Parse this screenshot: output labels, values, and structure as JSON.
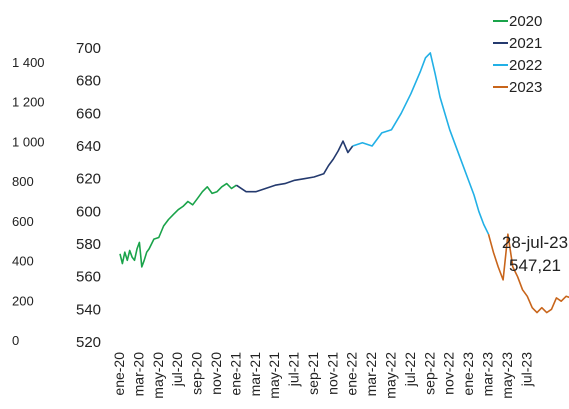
{
  "chart_data": {
    "type": "line",
    "title": "",
    "xlabel": "",
    "ylabel": "",
    "y_left_ticks": [
      "1 400",
      "1 200",
      "1 000",
      "800",
      "600",
      "400",
      "200",
      "0"
    ],
    "y_left_lim": [
      0,
      1400
    ],
    "ylim": [
      520,
      700
    ],
    "y_ticks": [
      520,
      540,
      560,
      580,
      600,
      620,
      640,
      660,
      680,
      700
    ],
    "x_tick_labels": [
      "ene-20",
      "mar-20",
      "may-20",
      "jul-20",
      "sep-20",
      "nov-20",
      "ene-21",
      "mar-21",
      "may-21",
      "jul-21",
      "sep-21",
      "nov-21",
      "ene-22",
      "mar-22",
      "may-22",
      "jul-22",
      "sep-22",
      "nov-22",
      "ene-23",
      "mar-23",
      "may-23",
      "jul-23"
    ],
    "legend_position": "top-right",
    "grid": false,
    "annotation": {
      "date": "28-jul-23",
      "value": "547,21"
    },
    "series": [
      {
        "name": "2020",
        "color": "#1aa34a",
        "points": [
          [
            0,
            574
          ],
          [
            0.25,
            568
          ],
          [
            0.5,
            575
          ],
          [
            0.75,
            570
          ],
          [
            1,
            576
          ],
          [
            1.25,
            572
          ],
          [
            1.5,
            570
          ],
          [
            1.75,
            577
          ],
          [
            2,
            581
          ],
          [
            2.25,
            566
          ],
          [
            2.5,
            570
          ],
          [
            2.75,
            575
          ],
          [
            3,
            577
          ],
          [
            3.5,
            583
          ],
          [
            4,
            584
          ],
          [
            4.5,
            591
          ],
          [
            5,
            595
          ],
          [
            5.5,
            598
          ],
          [
            6,
            601
          ],
          [
            6.5,
            603
          ],
          [
            7,
            606
          ],
          [
            7.5,
            604
          ],
          [
            8,
            608
          ],
          [
            8.5,
            612
          ],
          [
            9,
            615
          ],
          [
            9.5,
            611
          ],
          [
            10,
            612
          ],
          [
            10.5,
            615
          ],
          [
            11,
            617
          ],
          [
            11.5,
            614
          ],
          [
            12,
            616
          ]
        ]
      },
      {
        "name": "2021",
        "color": "#243a6e",
        "points": [
          [
            12,
            616
          ],
          [
            13,
            612
          ],
          [
            14,
            612
          ],
          [
            15,
            614
          ],
          [
            16,
            616
          ],
          [
            17,
            617
          ],
          [
            18,
            619
          ],
          [
            19,
            620
          ],
          [
            20,
            621
          ],
          [
            21,
            623
          ],
          [
            21.5,
            628
          ],
          [
            22,
            632
          ],
          [
            22.5,
            637
          ],
          [
            23,
            643
          ],
          [
            23.5,
            636
          ],
          [
            24,
            640
          ]
        ]
      },
      {
        "name": "2022",
        "color": "#22b0e6",
        "points": [
          [
            24,
            640
          ],
          [
            25,
            642
          ],
          [
            26,
            640
          ],
          [
            27,
            648
          ],
          [
            28,
            650
          ],
          [
            29,
            660
          ],
          [
            30,
            672
          ],
          [
            31,
            686
          ],
          [
            31.5,
            694
          ],
          [
            32,
            697
          ],
          [
            32.5,
            684
          ],
          [
            33,
            670
          ],
          [
            34,
            650
          ],
          [
            35,
            634
          ],
          [
            36,
            618
          ],
          [
            36.5,
            610
          ],
          [
            37,
            600
          ],
          [
            37.5,
            592
          ],
          [
            38,
            586
          ]
        ]
      },
      {
        "name": "2023",
        "color": "#c8651b",
        "points": [
          [
            38,
            586
          ],
          [
            38.5,
            575
          ],
          [
            39,
            566
          ],
          [
            39.5,
            558
          ],
          [
            40,
            586
          ],
          [
            40.5,
            566
          ],
          [
            41,
            560
          ],
          [
            41.5,
            552
          ],
          [
            42,
            548
          ],
          [
            42.5,
            541
          ],
          [
            43,
            538
          ],
          [
            43.5,
            541
          ],
          [
            44,
            538
          ],
          [
            44.5,
            540
          ],
          [
            45,
            547
          ],
          [
            45.5,
            545
          ],
          [
            46,
            548
          ],
          [
            46.5,
            547
          ],
          [
            47,
            545
          ],
          [
            47.5,
            541
          ],
          [
            48,
            547
          ]
        ]
      }
    ]
  }
}
